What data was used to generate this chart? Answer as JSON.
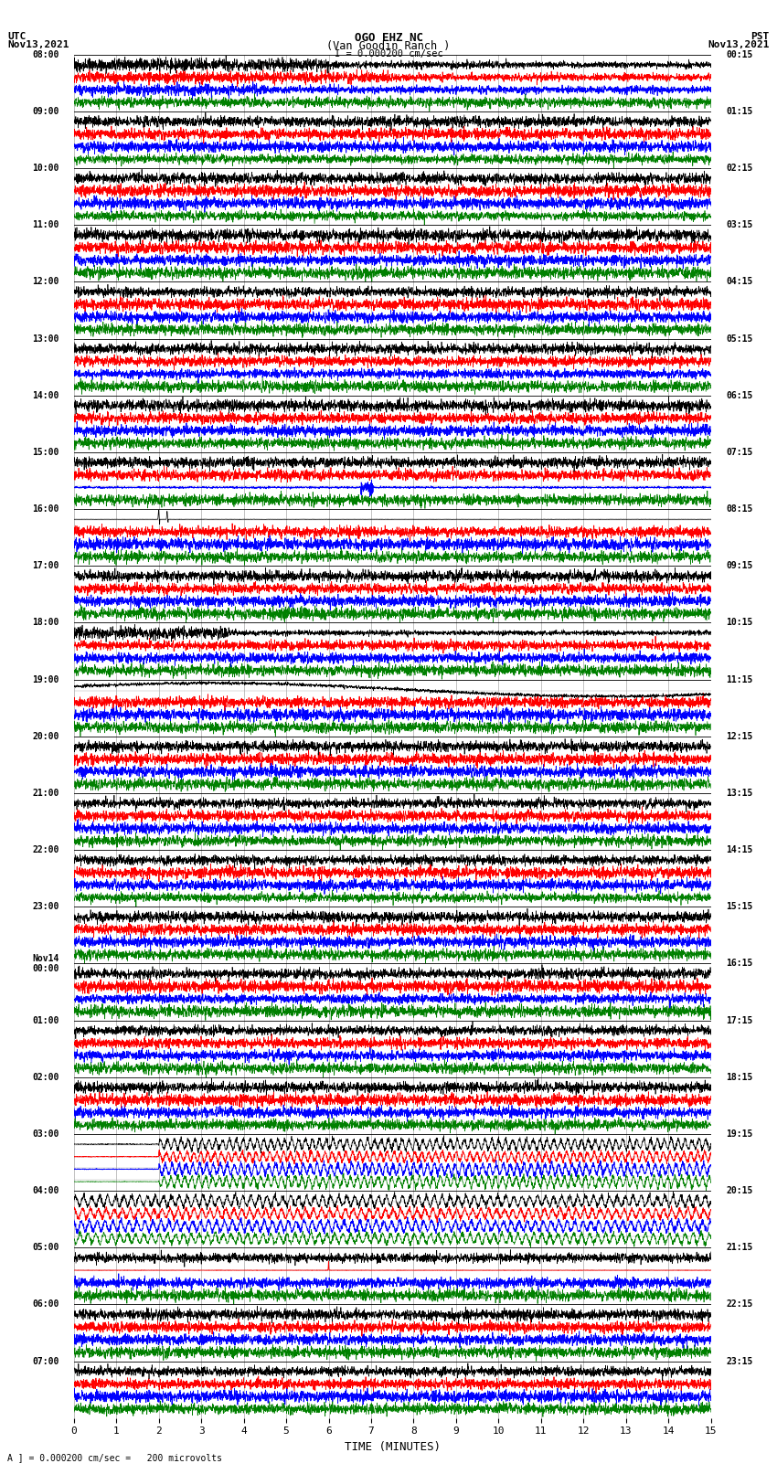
{
  "title_line1": "OGO EHZ NC",
  "title_line2": "(Van Goodin Ranch )",
  "title_line3": "I = 0.000200 cm/sec",
  "left_header_line1": "UTC",
  "left_header_line2": "Nov13,2021",
  "right_header_line1": "PST",
  "right_header_line2": "Nov13,2021",
  "xlabel": "TIME (MINUTES)",
  "footer": "A ] = 0.000200 cm/sec =   200 microvolts",
  "xlim": [
    0,
    15
  ],
  "xticks": [
    0,
    1,
    2,
    3,
    4,
    5,
    6,
    7,
    8,
    9,
    10,
    11,
    12,
    13,
    14,
    15
  ],
  "bg_color": "#ffffff",
  "grid_color": "#aaaaaa",
  "trace_color_black": "#000000",
  "trace_color_red": "#ff0000",
  "trace_color_blue": "#0000ff",
  "trace_color_green": "#008000",
  "utc_labels_left": [
    "08:00",
    "09:00",
    "10:00",
    "11:00",
    "12:00",
    "13:00",
    "14:00",
    "15:00",
    "16:00",
    "17:00",
    "18:00",
    "19:00",
    "20:00",
    "21:00",
    "22:00",
    "23:00",
    "Nov14\n00:00",
    "01:00",
    "02:00",
    "03:00",
    "04:00",
    "05:00",
    "06:00",
    "07:00"
  ],
  "pst_labels_right": [
    "00:15",
    "01:15",
    "02:15",
    "03:15",
    "04:15",
    "05:15",
    "06:15",
    "07:15",
    "08:15",
    "09:15",
    "10:15",
    "11:15",
    "12:15",
    "13:15",
    "14:15",
    "15:15",
    "16:15",
    "17:15",
    "18:15",
    "19:15",
    "20:15",
    "21:15",
    "22:15",
    "23:15"
  ],
  "num_rows": 24,
  "sub_rows": 5,
  "fig_width": 8.5,
  "fig_height": 16.13,
  "dpi": 100
}
